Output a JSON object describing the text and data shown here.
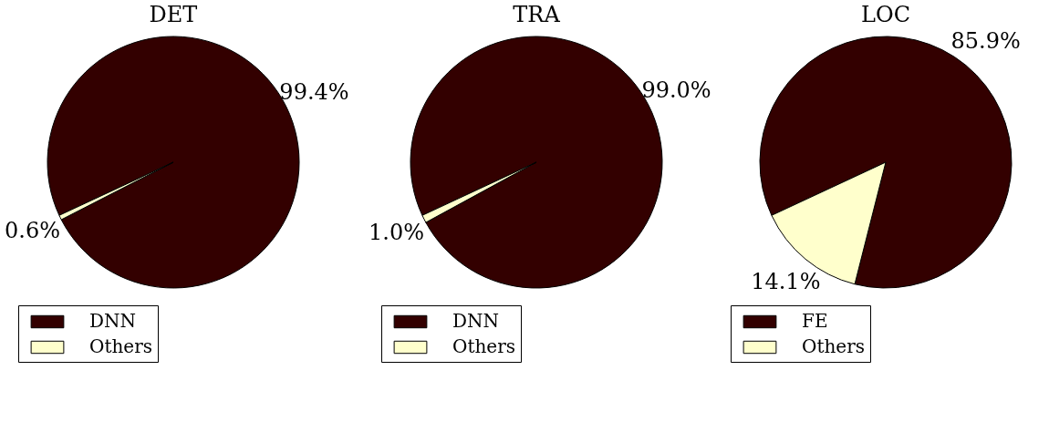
{
  "chart_data": [
    {
      "type": "pie",
      "title": "DET",
      "categories": [
        "DNN",
        "Others"
      ],
      "values": [
        99.4,
        0.6
      ],
      "colors": [
        "#330000",
        "#ffffcc"
      ],
      "value_labels": [
        "99.4%",
        "0.6%"
      ],
      "legend": "bottom"
    },
    {
      "type": "pie",
      "title": "TRA",
      "categories": [
        "DNN",
        "Others"
      ],
      "values": [
        99.0,
        1.0
      ],
      "colors": [
        "#330000",
        "#ffffcc"
      ],
      "value_labels": [
        "99.0%",
        "1.0%"
      ],
      "legend": "bottom"
    },
    {
      "type": "pie",
      "title": "LOC",
      "categories": [
        "FE",
        "Others"
      ],
      "values": [
        85.9,
        14.1
      ],
      "colors": [
        "#330000",
        "#ffffcc"
      ],
      "value_labels": [
        "85.9%",
        "14.1%"
      ],
      "legend": "bottom"
    }
  ]
}
